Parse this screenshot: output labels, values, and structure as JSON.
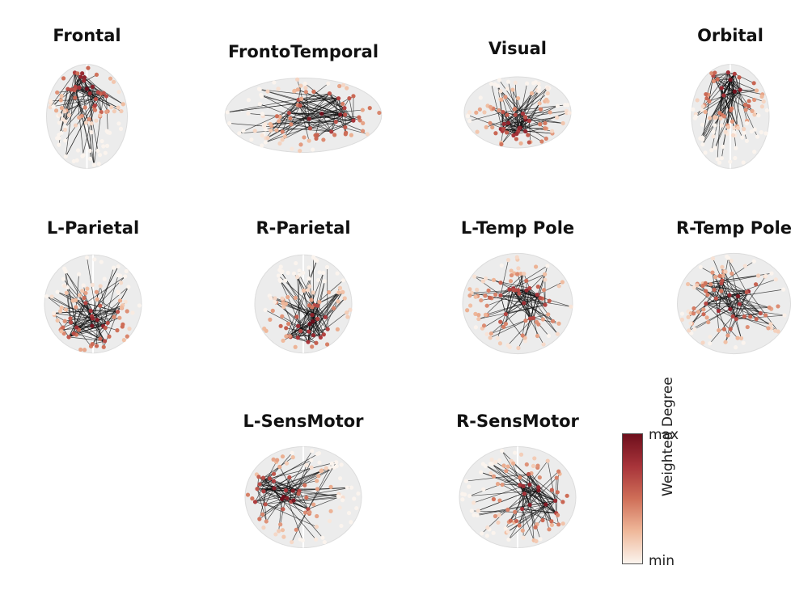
{
  "figure": {
    "panels": [
      {
        "title": "Frontal",
        "view": "axial",
        "hub": "front"
      },
      {
        "title": "FrontoTemporal",
        "view": "lateral",
        "hub": "right"
      },
      {
        "title": "Visual",
        "view": "lateral",
        "hub": "low"
      },
      {
        "title": "Orbital",
        "view": "axial",
        "hub": "front"
      },
      {
        "title": "L-Parietal",
        "view": "axial",
        "hub": "back"
      },
      {
        "title": "R-Parietal",
        "view": "axial",
        "hub": "back-right"
      },
      {
        "title": "L-Temp Pole",
        "view": "coronal",
        "hub": "spread"
      },
      {
        "title": "R-Temp Pole",
        "view": "coronal",
        "hub": "spread"
      },
      {
        "title": "L-SensMotor",
        "view": "axial",
        "hub": "left"
      },
      {
        "title": "R-SensMotor",
        "view": "axial",
        "hub": "right"
      }
    ],
    "colorbar": {
      "label": "Weighted Degree",
      "max_label": "max",
      "min_label": "min",
      "colors": [
        "#6e0f1c",
        "#a8343a",
        "#cf6f58",
        "#efb89a",
        "#fbf4ee"
      ]
    }
  }
}
